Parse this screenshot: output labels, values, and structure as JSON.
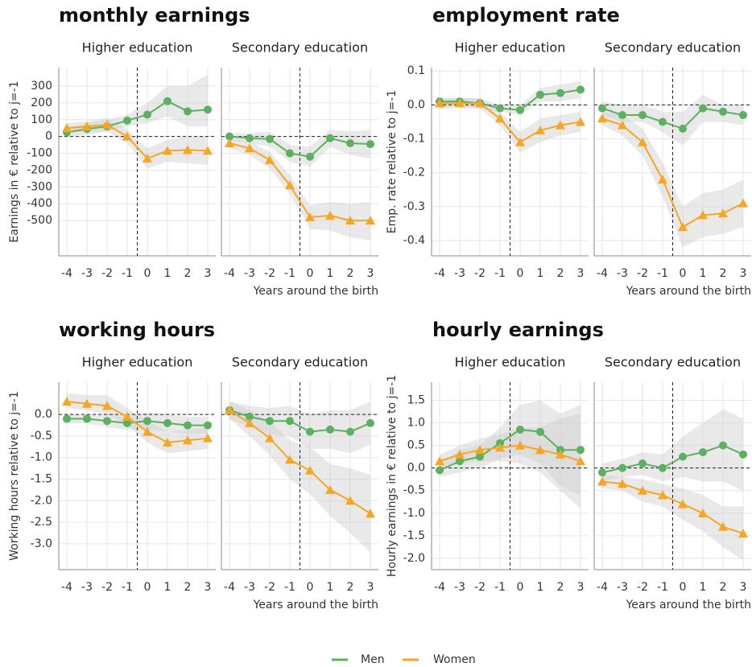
{
  "chart_data": [
    {
      "type": "line",
      "title": "monthly earnings",
      "ylabel": "Earnings in € relative to j=-1",
      "xlabel": "Years around the birth",
      "x": [
        -4,
        -3,
        -2,
        -1,
        0,
        1,
        2,
        3
      ],
      "xlim": [
        -4.4,
        3.4
      ],
      "xticks": [
        -4,
        -3,
        -2,
        -1,
        0,
        1,
        2,
        3
      ],
      "ylim": [
        -710,
        410
      ],
      "yticks": [
        300,
        200,
        100,
        0,
        -100,
        -200,
        -300,
        -400,
        -500
      ],
      "grid": true,
      "ref_x": -0.5,
      "ref_y": 0,
      "facets": [
        {
          "title": "Higher education",
          "series": [
            {
              "name": "Men",
              "color": "#5cb05f",
              "marker": "circle",
              "values": [
                25,
                45,
                60,
                95,
                130,
                210,
                150,
                160
              ],
              "ci_lower": [
                0,
                10,
                30,
                60,
                80,
                120,
                60,
                60
              ],
              "ci_upper": [
                50,
                80,
                100,
                130,
                200,
                300,
                300,
                370
              ]
            },
            {
              "name": "Women",
              "color": "#f5a623",
              "marker": "triangle",
              "values": [
                50,
                60,
                70,
                0,
                -130,
                -85,
                -80,
                -85
              ],
              "ci_lower": [
                20,
                30,
                30,
                -40,
                -190,
                -150,
                -160,
                -170
              ],
              "ci_upper": [
                80,
                90,
                110,
                40,
                -70,
                -20,
                0,
                0
              ]
            }
          ]
        },
        {
          "title": "Secondary education",
          "series": [
            {
              "name": "Men",
              "color": "#5cb05f",
              "marker": "circle",
              "values": [
                0,
                -10,
                -15,
                -100,
                -120,
                -10,
                -40,
                -45
              ],
              "ci_lower": [
                -20,
                -40,
                -60,
                -150,
                -180,
                -60,
                -110,
                -130
              ],
              "ci_upper": [
                20,
                20,
                30,
                -50,
                -60,
                40,
                30,
                40
              ]
            },
            {
              "name": "Women",
              "color": "#f5a623",
              "marker": "triangle",
              "values": [
                -40,
                -70,
                -140,
                -290,
                -480,
                -470,
                -500,
                -500
              ],
              "ci_lower": [
                -70,
                -110,
                -190,
                -340,
                -550,
                -560,
                -600,
                -620
              ],
              "ci_upper": [
                -10,
                -30,
                -90,
                -230,
                -410,
                -390,
                -400,
                -390
              ]
            }
          ]
        }
      ]
    },
    {
      "type": "line",
      "title": "employment rate",
      "ylabel": "Emp. rate relative to j=-1",
      "xlabel": "Years around the birth",
      "x": [
        -4,
        -3,
        -2,
        -1,
        0,
        1,
        2,
        3
      ],
      "xlim": [
        -4.4,
        3.4
      ],
      "xticks": [
        -4,
        -3,
        -2,
        -1,
        0,
        1,
        2,
        3
      ],
      "ylim": [
        -0.445,
        0.11
      ],
      "yticks": [
        0.1,
        {
          "value": 0,
          "label": "0.0"
        },
        -0.1,
        -0.2,
        -0.3,
        -0.4
      ],
      "grid": true,
      "ref_x": -0.5,
      "ref_y": 0,
      "facets": [
        {
          "title": "Higher education",
          "series": [
            {
              "name": "Men",
              "color": "#5cb05f",
              "marker": "circle",
              "values": [
                0.01,
                0.01,
                0.005,
                -0.01,
                -0.015,
                0.03,
                0.035,
                0.045
              ],
              "ci_lower": [
                -0.01,
                -0.005,
                -0.01,
                -0.02,
                -0.03,
                0.01,
                0.01,
                0.02
              ],
              "ci_upper": [
                0.02,
                0.02,
                0.02,
                0,
                0,
                0.05,
                0.06,
                0.07
              ]
            },
            {
              "name": "Women",
              "color": "#f5a623",
              "marker": "triangle",
              "values": [
                0.005,
                0.005,
                0.005,
                -0.04,
                -0.11,
                -0.075,
                -0.06,
                -0.05
              ],
              "ci_lower": [
                -0.01,
                -0.01,
                -0.01,
                -0.06,
                -0.14,
                -0.11,
                -0.09,
                -0.08
              ],
              "ci_upper": [
                0.02,
                0.02,
                0.02,
                -0.02,
                -0.08,
                -0.04,
                -0.03,
                -0.02
              ]
            }
          ]
        },
        {
          "title": "Secondary education",
          "series": [
            {
              "name": "Men",
              "color": "#5cb05f",
              "marker": "circle",
              "values": [
                -0.01,
                -0.03,
                -0.03,
                -0.05,
                -0.07,
                -0.01,
                -0.02,
                -0.03
              ],
              "ci_lower": [
                -0.03,
                -0.05,
                -0.05,
                -0.08,
                -0.12,
                -0.05,
                -0.05,
                -0.06
              ],
              "ci_upper": [
                0.01,
                0,
                0,
                -0.02,
                -0.02,
                0.03,
                0,
                0
              ]
            },
            {
              "name": "Women",
              "color": "#f5a623",
              "marker": "triangle",
              "values": [
                -0.04,
                -0.06,
                -0.11,
                -0.22,
                -0.36,
                -0.325,
                -0.32,
                -0.29
              ],
              "ci_lower": [
                -0.06,
                -0.09,
                -0.15,
                -0.27,
                -0.42,
                -0.39,
                -0.38,
                -0.36
              ],
              "ci_upper": [
                -0.02,
                -0.03,
                -0.07,
                -0.17,
                -0.3,
                -0.26,
                -0.25,
                -0.22
              ]
            }
          ]
        }
      ]
    },
    {
      "type": "line",
      "title": "working hours",
      "ylabel": "Working hours relative to j=-1",
      "xlabel": "Years around the birth",
      "x": [
        -4,
        -3,
        -2,
        -1,
        0,
        1,
        2,
        3
      ],
      "xlim": [
        -4.4,
        3.4
      ],
      "xticks": [
        -4,
        -3,
        -2,
        -1,
        0,
        1,
        2,
        3
      ],
      "ylim": [
        -3.6,
        0.75
      ],
      "yticks": [
        {
          "value": 0,
          "label": "0.0"
        },
        -0.5,
        {
          "value": -1,
          "label": "-1.0"
        },
        -1.5,
        {
          "value": -2,
          "label": "-2.0"
        },
        -2.5,
        {
          "value": -3,
          "label": "-3.0"
        }
      ],
      "grid": true,
      "ref_x": -0.5,
      "ref_y": 0,
      "facets": [
        {
          "title": "Higher education",
          "series": [
            {
              "name": "Men",
              "color": "#5cb05f",
              "marker": "circle",
              "values": [
                -0.1,
                -0.1,
                -0.15,
                -0.2,
                -0.15,
                -0.2,
                -0.25,
                -0.25
              ],
              "ci_lower": [
                -0.2,
                -0.2,
                -0.3,
                -0.35,
                -0.35,
                -0.4,
                -0.45,
                -0.45
              ],
              "ci_upper": [
                0,
                0,
                0,
                -0.05,
                0.05,
                0,
                -0.05,
                -0.05
              ]
            },
            {
              "name": "Women",
              "color": "#f5a623",
              "marker": "triangle",
              "values": [
                0.3,
                0.25,
                0.2,
                -0.05,
                -0.4,
                -0.65,
                -0.6,
                -0.55
              ],
              "ci_lower": [
                0.15,
                0.1,
                0,
                -0.25,
                -0.65,
                -0.9,
                -0.85,
                -0.8
              ],
              "ci_upper": [
                0.5,
                0.45,
                0.45,
                0.15,
                -0.15,
                -0.4,
                -0.35,
                -0.3
              ]
            }
          ]
        },
        {
          "title": "Secondary education",
          "series": [
            {
              "name": "Men",
              "color": "#5cb05f",
              "marker": "circle",
              "values": [
                0.1,
                -0.05,
                -0.15,
                -0.15,
                -0.4,
                -0.35,
                -0.4,
                -0.2
              ],
              "ci_lower": [
                -0.1,
                -0.3,
                -0.45,
                -0.5,
                -0.8,
                -0.8,
                -0.9,
                -0.7
              ],
              "ci_upper": [
                0.3,
                0.2,
                0.15,
                0.2,
                0,
                0.1,
                0.1,
                0.3
              ]
            },
            {
              "name": "Women",
              "color": "#f5a623",
              "marker": "triangle",
              "values": [
                0.1,
                -0.2,
                -0.55,
                -1.05,
                -1.3,
                -1.75,
                -2,
                -2.3
              ],
              "ci_lower": [
                -0.1,
                -0.5,
                -0.95,
                -1.5,
                -1.85,
                -2.35,
                -2.75,
                -3.2
              ],
              "ci_upper": [
                0.3,
                0.1,
                -0.15,
                -0.6,
                -0.75,
                -1.15,
                -1.25,
                -1.4
              ]
            }
          ]
        }
      ]
    },
    {
      "type": "line",
      "title": "hourly earnings",
      "ylabel": "Hourly earnings in € relative to j=-1",
      "xlabel": "Years around the birth",
      "x": [
        -4,
        -3,
        -2,
        -1,
        0,
        1,
        2,
        3
      ],
      "xlim": [
        -4.4,
        3.4
      ],
      "xticks": [
        -4,
        -3,
        -2,
        -1,
        0,
        1,
        2,
        3
      ],
      "ylim": [
        -2.25,
        1.9
      ],
      "yticks": [
        1.5,
        {
          "value": 1,
          "label": "1.0"
        },
        0.5,
        {
          "value": 0,
          "label": "0.0"
        },
        -0.5,
        {
          "value": -1,
          "label": "-1.0"
        },
        -1.5,
        {
          "value": -2,
          "label": "-2.0"
        }
      ],
      "grid": true,
      "ref_x": -0.5,
      "ref_y": 0,
      "facets": [
        {
          "title": "Higher education",
          "series": [
            {
              "name": "Men",
              "color": "#5cb05f",
              "marker": "circle",
              "values": [
                -0.05,
                0.15,
                0.25,
                0.55,
                0.85,
                0.8,
                0.4,
                0.4
              ],
              "ci_lower": [
                -0.2,
                -0.1,
                0,
                0.2,
                0.3,
                0.1,
                -0.4,
                -0.6
              ],
              "ci_upper": [
                0.1,
                0.4,
                0.5,
                0.9,
                1.4,
                1.5,
                1.2,
                1.4
              ]
            },
            {
              "name": "Women",
              "color": "#f5a623",
              "marker": "triangle",
              "values": [
                0.15,
                0.3,
                0.4,
                0.45,
                0.5,
                0.4,
                0.3,
                0.15
              ],
              "ci_lower": [
                0,
                0.1,
                0.15,
                0.15,
                0.1,
                -0.1,
                -0.5,
                -0.9
              ],
              "ci_upper": [
                0.3,
                0.5,
                0.65,
                0.75,
                0.9,
                0.9,
                1.1,
                1.2
              ]
            }
          ]
        },
        {
          "title": "Secondary education",
          "series": [
            {
              "name": "Men",
              "color": "#5cb05f",
              "marker": "circle",
              "values": [
                -0.1,
                0,
                0.1,
                0,
                0.25,
                0.35,
                0.5,
                0.3
              ],
              "ci_lower": [
                -0.3,
                -0.2,
                -0.15,
                -0.3,
                -0.2,
                -0.3,
                -0.3,
                -0.5
              ],
              "ci_upper": [
                0.1,
                0.2,
                0.35,
                0.3,
                0.7,
                1,
                1.3,
                1.1
              ]
            },
            {
              "name": "Women",
              "color": "#f5a623",
              "marker": "triangle",
              "values": [
                -0.3,
                -0.35,
                -0.5,
                -0.6,
                -0.8,
                -1,
                -1.3,
                -1.45
              ],
              "ci_lower": [
                -0.45,
                -0.5,
                -0.75,
                -0.85,
                -1.15,
                -1.4,
                -1.75,
                -2.05
              ],
              "ci_upper": [
                -0.15,
                -0.2,
                -0.25,
                -0.35,
                -0.45,
                -0.6,
                -0.85,
                -0.85
              ]
            }
          ]
        }
      ]
    }
  ]
}
